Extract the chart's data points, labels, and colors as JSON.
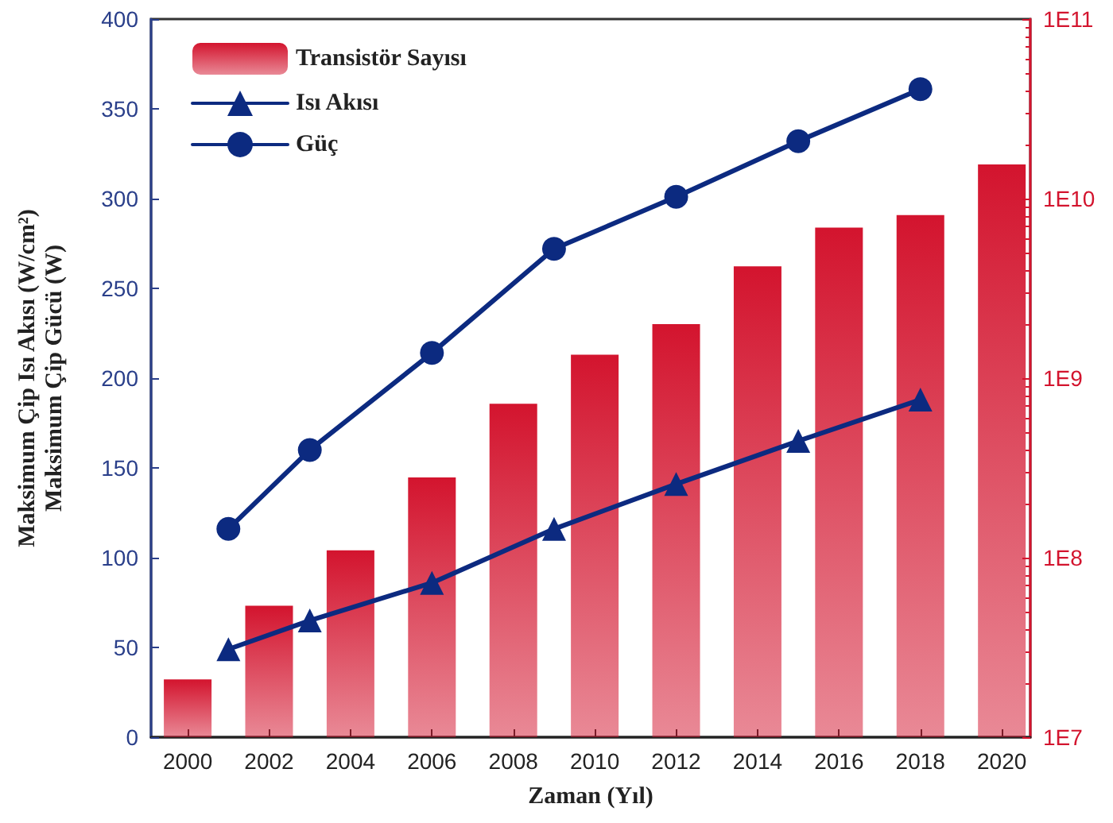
{
  "chart_data": {
    "type": "line",
    "xlabel": "Zaman (Yıl)",
    "ylabel": "Maksimum Çip Isı Akısı (W/cm²)\nMaksimum Çip Gücü (W)",
    "xlim": [
      1999.1,
      2020.7
    ],
    "xticks": [
      2000,
      2002,
      2004,
      2006,
      2008,
      2010,
      2012,
      2014,
      2016,
      2018,
      2020
    ],
    "ylim": [
      0,
      400
    ],
    "yticks": [
      0,
      50,
      100,
      150,
      200,
      250,
      300,
      350,
      400
    ],
    "y2lim": [
      10000000,
      100000000000
    ],
    "y2ticks": [
      {
        "value": 10000000,
        "label": "1E7"
      },
      {
        "value": 100000000,
        "label": "1E8"
      },
      {
        "value": 1000000000,
        "label": "1E9"
      },
      {
        "value": 10000000000,
        "label": "1E10"
      },
      {
        "value": 100000000000,
        "label": "1E11"
      }
    ],
    "log": "y2",
    "grid": false,
    "legend": "top left",
    "series": [
      {
        "name": "Transistör Sayısı",
        "type": "bar",
        "axis": "y2",
        "color": "#d3142e",
        "x": [
          2000,
          2002,
          2004,
          2006,
          2008,
          2010,
          2012,
          2014,
          2016,
          2018,
          2020
        ],
        "values": [
          21000000,
          54000000,
          110000000,
          280000000,
          720000000,
          1350000000,
          2000000000,
          4200000000,
          6900000000,
          8100000000,
          15500000000
        ]
      },
      {
        "name": "Isı Akısı",
        "marker": "triangle",
        "color": "#0c2a80",
        "x": [
          2001,
          2003,
          2006,
          2009,
          2012,
          2015,
          2018
        ],
        "values": [
          49,
          65,
          86,
          116,
          141,
          165,
          188
        ]
      },
      {
        "name": "Güç",
        "marker": "circle",
        "color": "#0c2a80",
        "x": [
          2001,
          2003,
          2006,
          2009,
          2012,
          2015,
          2018
        ],
        "values": [
          116,
          160,
          214,
          272,
          301,
          332,
          361
        ]
      }
    ]
  }
}
